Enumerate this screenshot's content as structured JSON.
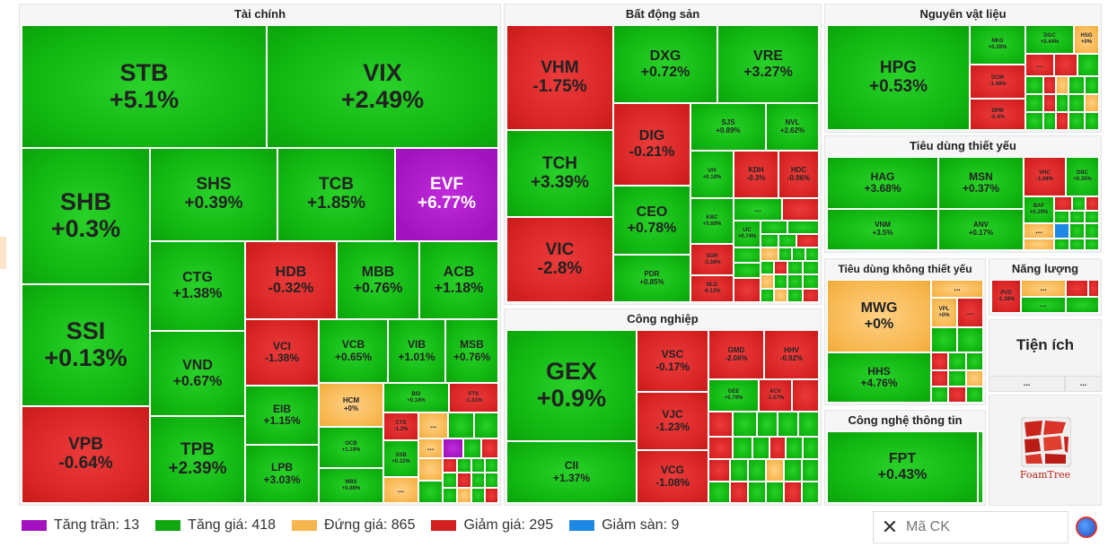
{
  "sectors": {
    "tai_chinh": "Tài chính",
    "bat_dong_san": "Bất động sản",
    "nguyen_vat_lieu": "Nguyên vật liệu",
    "tieu_dung_thiet_yeu": "Tiêu dùng thiết yếu",
    "tieu_dung_khong_thiet_yeu": "Tiêu dùng không thiết yếu",
    "nang_luong": "Năng lượng",
    "cong_nghiep": "Công nghiệp",
    "tien_ich": "Tiện ích",
    "cong_nghe": "Công nghệ thông tin"
  },
  "stocks": {
    "STB": {
      "s": "STB",
      "c": "+5.1%"
    },
    "VIX": {
      "s": "VIX",
      "c": "+2.49%"
    },
    "SHB": {
      "s": "SHB",
      "c": "+0.3%"
    },
    "SHS": {
      "s": "SHS",
      "c": "+0.39%"
    },
    "TCB": {
      "s": "TCB",
      "c": "+1.85%"
    },
    "EVF": {
      "s": "EVF",
      "c": "+6.77%"
    },
    "SSI": {
      "s": "SSI",
      "c": "+0.13%"
    },
    "CTG": {
      "s": "CTG",
      "c": "+1.38%"
    },
    "HDB": {
      "s": "HDB",
      "c": "-0.32%"
    },
    "MBB": {
      "s": "MBB",
      "c": "+0.76%"
    },
    "ACB": {
      "s": "ACB",
      "c": "+1.18%"
    },
    "VND": {
      "s": "VND",
      "c": "+0.67%"
    },
    "VCI": {
      "s": "VCI",
      "c": "-1.38%"
    },
    "VCB": {
      "s": "VCB",
      "c": "+0.65%"
    },
    "VIB": {
      "s": "VIB",
      "c": "+1.01%"
    },
    "MSB": {
      "s": "MSB",
      "c": "+0.76%"
    },
    "VPB": {
      "s": "VPB",
      "c": "-0.64%"
    },
    "TPB": {
      "s": "TPB",
      "c": "+2.39%"
    },
    "EIB": {
      "s": "EIB",
      "c": "+1.15%"
    },
    "HCM": {
      "s": "HCM",
      "c": "+0%"
    },
    "BID": {
      "s": "BID",
      "c": "+0.18%"
    },
    "FTS": {
      "s": "FTS",
      "c": "-1.31%"
    },
    "CTS": {
      "s": "CTS",
      "c": "-1.2%"
    },
    "LPB": {
      "s": "LPB",
      "c": "+3.03%"
    },
    "OCB": {
      "s": "OCB",
      "c": "+1.19%"
    },
    "SSB": {
      "s": "SSB",
      "c": "+0.32%"
    },
    "MBS": {
      "s": "MBS",
      "c": "+0.88%"
    },
    "VHM": {
      "s": "VHM",
      "c": "-1.75%"
    },
    "DXG": {
      "s": "DXG",
      "c": "+0.72%"
    },
    "VRE": {
      "s": "VRE",
      "c": "+3.27%"
    },
    "TCH": {
      "s": "TCH",
      "c": "+3.39%"
    },
    "DIG": {
      "s": "DIG",
      "c": "-0.21%"
    },
    "SJS": {
      "s": "SJS",
      "c": "+0.89%"
    },
    "NVL": {
      "s": "NVL",
      "c": "+2.62%"
    },
    "VPI": {
      "s": "VPI",
      "c": "+0.18%"
    },
    "KDH": {
      "s": "KDH",
      "c": "-0.3%"
    },
    "HDC": {
      "s": "HDC",
      "c": "-0.96%"
    },
    "CEO": {
      "s": "CEO",
      "c": "+0.78%"
    },
    "KBC": {
      "s": "KBC",
      "c": "+0.69%"
    },
    "IJC": {
      "s": "IJC",
      "c": "+0.74%"
    },
    "SGR": {
      "s": "SGR",
      "c": "-3.38%"
    },
    "VIC": {
      "s": "VIC",
      "c": "-2.8%"
    },
    "PDR": {
      "s": "PDR",
      "c": "+0.85%"
    },
    "NLG": {
      "s": "NLG",
      "c": "-0.12%"
    },
    "HPG": {
      "s": "HPG",
      "c": "+0.53%"
    },
    "NKG": {
      "s": "NKG",
      "c": "+0.28%"
    },
    "DGC": {
      "s": "DGC",
      "c": "+0.44%"
    },
    "HSG": {
      "s": "HSG",
      "c": "+0%"
    },
    "DCM": {
      "s": "DCM",
      "c": "-1.48%"
    },
    "DPM": {
      "s": "DPM",
      "c": "-0.4%"
    },
    "HAG": {
      "s": "HAG",
      "c": "+3.68%"
    },
    "MSN": {
      "s": "MSN",
      "c": "+0.37%"
    },
    "VHC": {
      "s": "VHC",
      "c": "-1.08%"
    },
    "DBC": {
      "s": "DBC",
      "c": "+0.35%"
    },
    "BAF": {
      "s": "BAF",
      "c": "+0.29%"
    },
    "VNM": {
      "s": "VNM",
      "c": "+3.5%"
    },
    "ANV": {
      "s": "ANV",
      "c": "+0.17%"
    },
    "MWG": {
      "s": "MWG",
      "c": "+0%"
    },
    "VPL": {
      "s": "VPL",
      "c": "+0%"
    },
    "HHS": {
      "s": "HHS",
      "c": "+4.76%"
    },
    "PVD": {
      "s": "PVD",
      "c": "-1.38%"
    },
    "GEX": {
      "s": "GEX",
      "c": "+0.9%"
    },
    "VSC": {
      "s": "VSC",
      "c": "-0.17%"
    },
    "GMD": {
      "s": "GMD",
      "c": "-2.06%"
    },
    "HHV": {
      "s": "HHV",
      "c": "-0.92%"
    },
    "GEE": {
      "s": "GEE",
      "c": "+0.79%"
    },
    "ACV": {
      "s": "ACV",
      "c": "-1.07%"
    },
    "VJC": {
      "s": "VJC",
      "c": "-1.23%"
    },
    "CII": {
      "s": "CII",
      "c": "+1.37%"
    },
    "VCG": {
      "s": "VCG",
      "c": "-1.08%"
    },
    "FPT": {
      "s": "FPT",
      "c": "+0.43%"
    }
  },
  "ellipsis": "...",
  "legend": {
    "ceiling": "Tăng trần: 13",
    "up": "Tăng giá: 418",
    "flat": "Đứng giá: 865",
    "down": "Giảm giá: 295",
    "floor": "Giảm sàn: 9",
    "colors": {
      "ceiling": "#a213bf",
      "up": "#10a810",
      "flat": "#f7b64d",
      "down": "#d21f1f",
      "floor": "#1e88e5"
    }
  },
  "search": {
    "placeholder": "Mã CK",
    "close": "✕"
  },
  "foamtree": "FoamTree"
}
